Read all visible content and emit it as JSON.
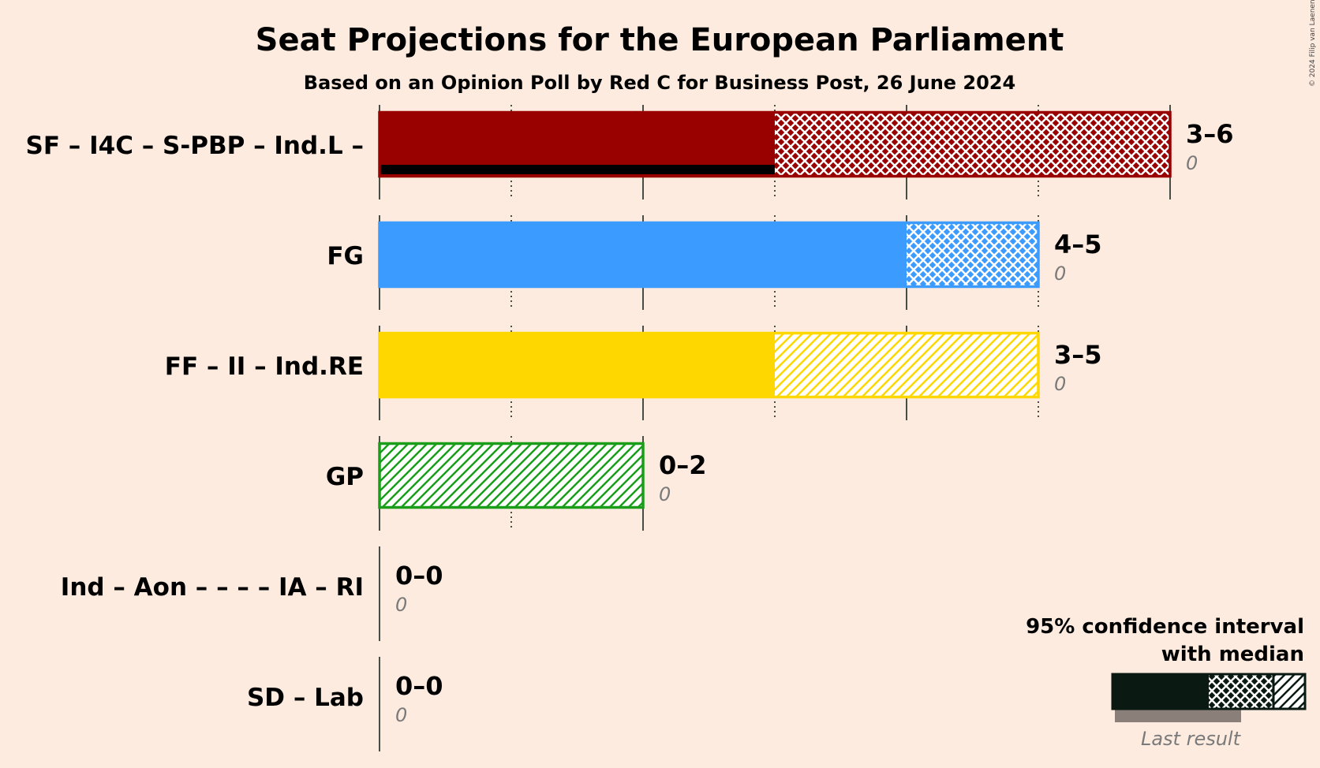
{
  "chart_data": {
    "type": "bar",
    "title": "Seat Projections for the European Parliament",
    "subtitle": "Based on an Opinion Poll by Red C for Business Post, 26 June 2024",
    "copyright": "© 2024 Filip van Laenen",
    "xlim": [
      0,
      6
    ],
    "orientation": "horizontal",
    "categories": [
      "SF – I4C – S-PBP – Ind.L –",
      "FG",
      "FF – II – Ind.RE",
      "GP",
      "Ind – Aon – – – – IA – RI",
      "SD – Lab"
    ],
    "series": [
      {
        "category": "SF – I4C – S-PBP – Ind.L –",
        "color": "#990000",
        "low": 3,
        "median": 3,
        "high": 6,
        "range_label": "3–6",
        "last_result": 0,
        "last_result_label": "0"
      },
      {
        "category": "FG",
        "color": "#3b9bff",
        "low": 4,
        "median": 4,
        "high": 5,
        "range_label": "4–5",
        "last_result": 0,
        "last_result_label": "0"
      },
      {
        "category": "FF – II – Ind.RE",
        "color": "#ffd700",
        "low": 3,
        "median": 3,
        "high": 5,
        "range_label": "3–5",
        "last_result": 0,
        "last_result_label": "0"
      },
      {
        "category": "GP",
        "color": "#1a9e1a",
        "low": 0,
        "median": 0,
        "high": 2,
        "range_label": "0–2",
        "last_result": 0,
        "last_result_label": "0"
      },
      {
        "category": "Ind – Aon – – – – IA – RI",
        "color": "#888888",
        "low": 0,
        "median": 0,
        "high": 0,
        "range_label": "0–0",
        "last_result": 0,
        "last_result_label": "0"
      },
      {
        "category": "SD – Lab",
        "color": "#888888",
        "low": 0,
        "median": 0,
        "high": 0,
        "range_label": "0–0",
        "last_result": 0,
        "last_result_label": "0"
      }
    ],
    "legend": {
      "line1": "95% confidence interval",
      "line2": "with median",
      "last_result": "Last result",
      "placement": "bottom-right"
    }
  }
}
